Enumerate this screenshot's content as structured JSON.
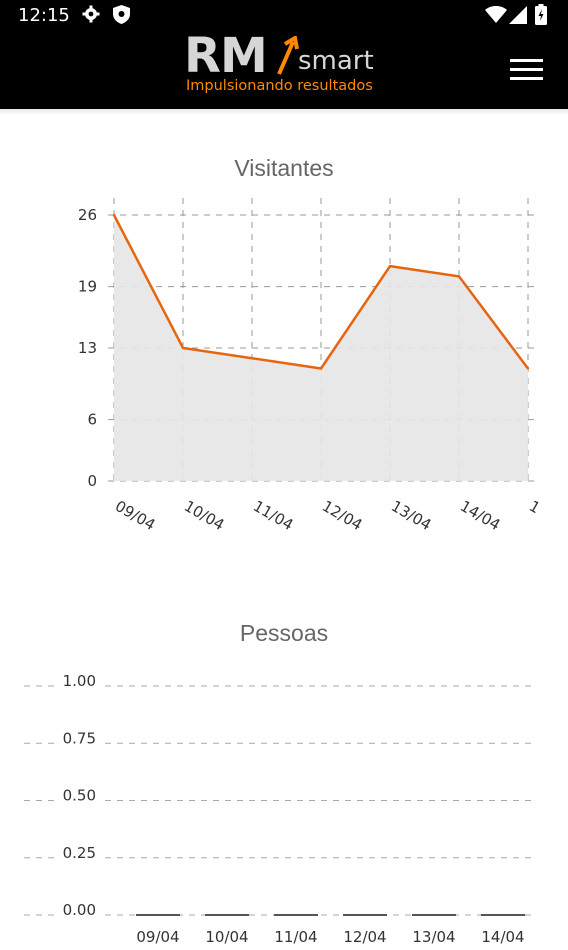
{
  "status_bar": {
    "time": "12:15",
    "icons": [
      "settings-icon",
      "shield-icon",
      "wifi-icon",
      "signal-icon",
      "battery-icon"
    ]
  },
  "header": {
    "logo_main": "RM",
    "logo_sub": "smart",
    "logo_tagline": "Impulsionando resultados",
    "menu_icon": "hamburger-menu-icon",
    "accent_color": "#ff8a00"
  },
  "chart_data": [
    {
      "type": "area",
      "title": "Visitantes",
      "categories": [
        "09/04",
        "10/04",
        "11/04",
        "12/04",
        "13/04",
        "14/04",
        "1"
      ],
      "values": [
        26,
        13,
        12,
        11,
        21,
        20,
        11
      ],
      "yticks": [
        "26",
        "19",
        "13",
        "6",
        "0"
      ],
      "ylim": [
        0,
        26
      ],
      "grid": true,
      "line_color": "#e8650f",
      "fill_color": "#e5e5e5"
    },
    {
      "type": "bar",
      "title": "Pessoas",
      "categories": [
        "09/04",
        "10/04",
        "11/04",
        "12/04",
        "13/04",
        "14/04"
      ],
      "values": [
        0,
        0,
        0,
        0,
        0,
        0
      ],
      "yticks": [
        "1.00",
        "0.75",
        "0.50",
        "0.25",
        "0.00"
      ],
      "ylim": [
        0,
        1
      ],
      "grid": true,
      "bar_color": "#555555"
    }
  ]
}
